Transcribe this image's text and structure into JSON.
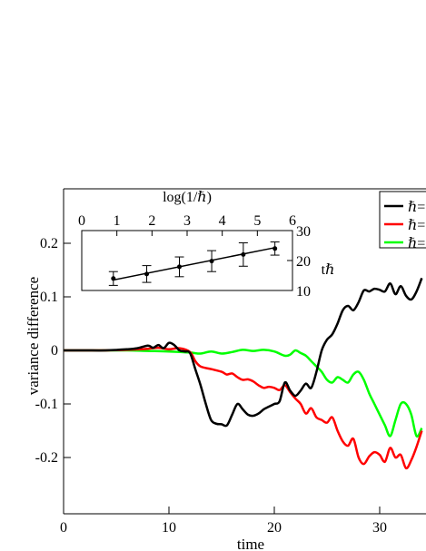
{
  "chart_data": [
    {
      "type": "line",
      "xlabel": "time",
      "ylabel": "variance difference",
      "xlim": [
        0,
        34
      ],
      "ylim": [
        -0.25,
        0.3
      ],
      "x_ticks": [
        0,
        10,
        20,
        30
      ],
      "x_tick_labels": [
        "0",
        "10",
        "20",
        "30"
      ],
      "y_ticks": [
        0.2,
        0.1,
        0,
        -0.1,
        -0.2
      ],
      "y_tick_labels": [
        "0.2",
        "0.1",
        "0",
        "-0.1",
        "-0.2"
      ],
      "legend_position": "top-right",
      "series": [
        {
          "name": "ℏ=",
          "color": "#000000",
          "x": [
            0,
            2,
            4,
            6,
            7,
            8,
            8.5,
            9,
            9.5,
            10,
            10.5,
            11,
            11.5,
            12,
            12.5,
            13,
            13.5,
            14,
            14.5,
            15,
            15.5,
            16,
            16.5,
            17,
            17.5,
            18,
            18.5,
            19,
            19.5,
            20,
            20.5,
            21,
            21.5,
            22,
            22.5,
            23,
            23.5,
            24,
            24.5,
            25,
            25.5,
            26,
            26.5,
            27,
            27.5,
            28,
            28.5,
            29,
            29.5,
            30,
            30.5,
            31,
            31.5,
            32,
            32.5,
            33,
            33.5,
            34
          ],
          "y": [
            0,
            0,
            0,
            0.002,
            0.004,
            0.009,
            0.005,
            0.01,
            0.004,
            0.014,
            0.01,
            0,
            -0.002,
            -0.005,
            -0.035,
            -0.065,
            -0.1,
            -0.13,
            -0.137,
            -0.138,
            -0.14,
            -0.12,
            -0.1,
            -0.11,
            -0.12,
            -0.122,
            -0.118,
            -0.11,
            -0.105,
            -0.1,
            -0.095,
            -0.06,
            -0.075,
            -0.085,
            -0.075,
            -0.062,
            -0.07,
            -0.04,
            0,
            0.02,
            0.03,
            0.05,
            0.075,
            0.083,
            0.075,
            0.09,
            0.112,
            0.11,
            0.115,
            0.113,
            0.11,
            0.125,
            0.105,
            0.12,
            0.102,
            0.095,
            0.11,
            0.135
          ]
        },
        {
          "name": "ℏ=",
          "color": "#ff0000",
          "x": [
            0,
            2,
            4,
            6,
            8,
            9,
            10,
            11,
            12,
            12.5,
            13,
            14,
            15,
            15.5,
            16,
            16.5,
            17,
            17.5,
            18,
            18.5,
            19,
            19.5,
            20,
            20.5,
            21,
            21.5,
            22,
            22.5,
            23,
            23.5,
            24,
            24.5,
            25,
            25.5,
            26,
            26.5,
            27,
            27.5,
            28,
            28.5,
            29,
            29.5,
            30,
            30.5,
            31,
            31.5,
            32,
            32.5,
            33,
            33.5,
            34
          ],
          "y": [
            0,
            0,
            0,
            0.001,
            0.003,
            0.005,
            0.002,
            0.004,
            -0.003,
            -0.02,
            -0.03,
            -0.035,
            -0.04,
            -0.045,
            -0.043,
            -0.05,
            -0.055,
            -0.054,
            -0.058,
            -0.065,
            -0.07,
            -0.068,
            -0.07,
            -0.074,
            -0.065,
            -0.078,
            -0.09,
            -0.1,
            -0.118,
            -0.108,
            -0.125,
            -0.13,
            -0.135,
            -0.125,
            -0.15,
            -0.17,
            -0.178,
            -0.165,
            -0.2,
            -0.212,
            -0.198,
            -0.19,
            -0.195,
            -0.208,
            -0.182,
            -0.2,
            -0.195,
            -0.22,
            -0.205,
            -0.18,
            -0.15
          ]
        },
        {
          "name": "ℏ=",
          "color": "#00ff00",
          "x": [
            0,
            2,
            4,
            6,
            8,
            10,
            12,
            13,
            14,
            15,
            16,
            17,
            18,
            19,
            20,
            21,
            21.5,
            22,
            22.5,
            23,
            23.5,
            24,
            24.5,
            25,
            25.5,
            26,
            26.5,
            27,
            27.5,
            28,
            28.5,
            29,
            29.5,
            30,
            30.5,
            31,
            31.5,
            32,
            32.5,
            33,
            33.5,
            34
          ],
          "y": [
            0,
            0,
            0,
            0,
            -0.001,
            -0.002,
            -0.004,
            -0.006,
            -0.002,
            -0.006,
            -0.003,
            0.001,
            -0.001,
            0.001,
            -0.002,
            -0.01,
            -0.008,
            0,
            -0.005,
            -0.01,
            -0.02,
            -0.03,
            -0.04,
            -0.055,
            -0.06,
            -0.05,
            -0.055,
            -0.06,
            -0.045,
            -0.04,
            -0.055,
            -0.08,
            -0.1,
            -0.12,
            -0.14,
            -0.16,
            -0.13,
            -0.1,
            -0.1,
            -0.12,
            -0.16,
            -0.145
          ]
        }
      ],
      "legend_labels": [
        "ℏ=",
        "ℏ=",
        "ℏ="
      ]
    },
    {
      "type": "scatter",
      "xlabel": "log(1/ℏ)",
      "ylabel": "tℏ",
      "xlim": [
        0,
        6
      ],
      "ylim": [
        10,
        30
      ],
      "x_ticks": [
        0,
        1,
        2,
        3,
        4,
        5,
        6
      ],
      "x_tick_labels": [
        "0",
        "1",
        "2",
        "3",
        "4",
        "5",
        "6"
      ],
      "y_ticks": [
        10,
        20,
        30
      ],
      "y_tick_labels": [
        "10",
        "20",
        "30"
      ],
      "points": [
        {
          "x": 0.9,
          "y": 14.0,
          "err": 2.3
        },
        {
          "x": 1.85,
          "y": 15.5,
          "err": 2.8
        },
        {
          "x": 2.78,
          "y": 17.9,
          "err": 3.3
        },
        {
          "x": 3.7,
          "y": 19.8,
          "err": 3.5
        },
        {
          "x": 4.6,
          "y": 22.0,
          "err": 3.9
        },
        {
          "x": 5.5,
          "y": 24.0,
          "err": 2.2
        }
      ],
      "fit_line": {
        "x": [
          0.9,
          5.5
        ],
        "y": [
          13.5,
          24.3
        ]
      }
    }
  ]
}
